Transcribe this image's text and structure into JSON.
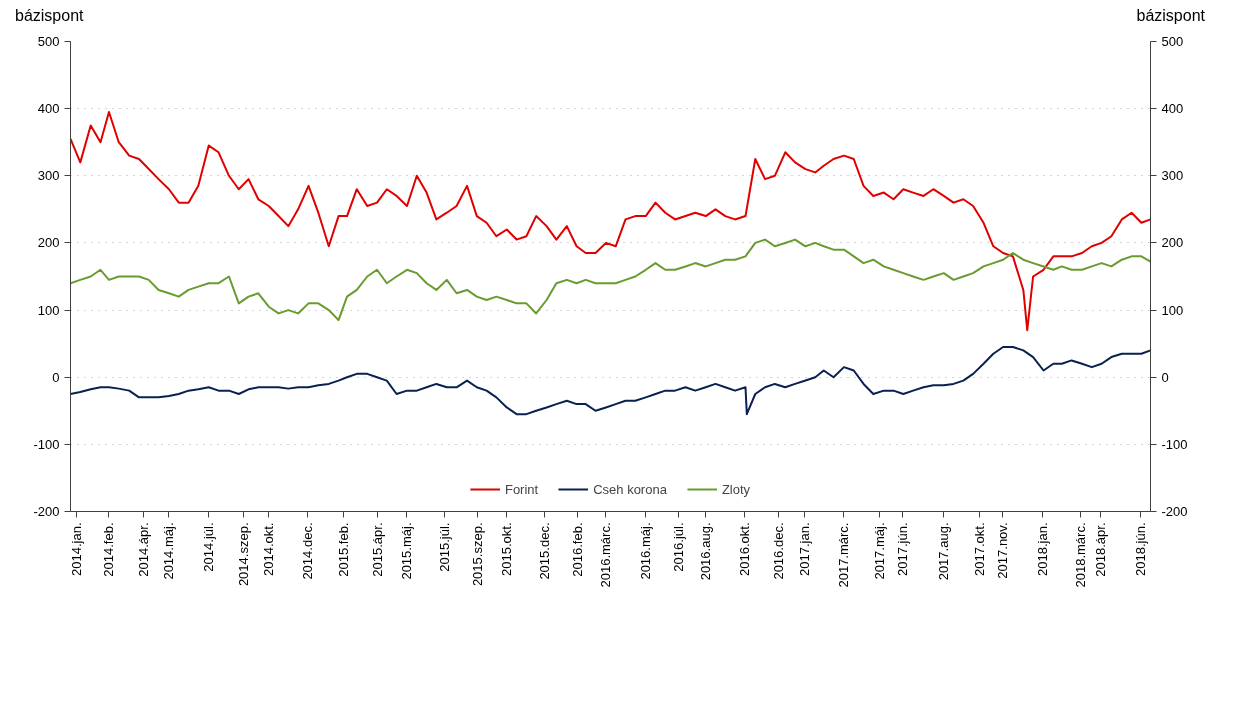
{
  "chart_data": {
    "type": "line",
    "ylabel": "bázispont",
    "y2label": "bázispont",
    "x": [
      "2014-01-01",
      "2014-01-16",
      "2014-02-01",
      "2014-02-16",
      "2014-03-01",
      "2014-03-16",
      "2014-04-01",
      "2014-04-16",
      "2014-05-01",
      "2014-05-16",
      "2014-06-01",
      "2014-06-16",
      "2014-07-01",
      "2014-07-16",
      "2014-08-01",
      "2014-08-16",
      "2014-09-01",
      "2014-09-16",
      "2014-10-01",
      "2014-10-16",
      "2014-11-01",
      "2014-11-16",
      "2014-12-01",
      "2014-12-16",
      "2015-01-01",
      "2015-01-16",
      "2015-02-01",
      "2015-02-16",
      "2015-03-01",
      "2015-03-16",
      "2015-04-01",
      "2015-04-16",
      "2015-05-01",
      "2015-05-16",
      "2015-06-01",
      "2015-06-16",
      "2015-07-01",
      "2015-07-16",
      "2015-08-01",
      "2015-08-16",
      "2015-09-01",
      "2015-09-16",
      "2015-10-01",
      "2015-10-16",
      "2015-11-01",
      "2015-11-16",
      "2015-12-01",
      "2015-12-16",
      "2016-01-01",
      "2016-01-16",
      "2016-02-01",
      "2016-02-16",
      "2016-03-01",
      "2016-03-16",
      "2016-04-01",
      "2016-04-16",
      "2016-05-01",
      "2016-05-16",
      "2016-06-01",
      "2016-06-16",
      "2016-07-01",
      "2016-07-16",
      "2016-08-01",
      "2016-08-16",
      "2016-09-01",
      "2016-09-16",
      "2016-10-01",
      "2016-10-16",
      "2016-11-01",
      "2016-11-16",
      "2016-12-01",
      "2016-12-16",
      "2017-01-01",
      "2017-01-16",
      "2017-02-01",
      "2017-02-16",
      "2017-03-01",
      "2017-03-16",
      "2017-04-01",
      "2017-04-16",
      "2017-05-01",
      "2017-05-16",
      "2017-06-01",
      "2017-06-16",
      "2017-07-01",
      "2017-07-16",
      "2017-08-01",
      "2017-08-16",
      "2017-09-01",
      "2017-09-16",
      "2017-10-01",
      "2017-10-16",
      "2017-11-01",
      "2017-11-16",
      "2017-12-01",
      "2017-12-16",
      "2018-01-01",
      "2018-01-16",
      "2018-02-01",
      "2018-02-16",
      "2018-03-01",
      "2018-03-16",
      "2018-04-01",
      "2018-04-16",
      "2018-05-01",
      "2018-05-16",
      "2018-06-01",
      "2018-06-16",
      "2018-07-01",
      "2018-07-15"
    ],
    "series": [
      {
        "name": "Forint",
        "color": "#e00000",
        "x": [
          "2014-01-01",
          "2014-01-16",
          "2014-02-01",
          "2014-02-16",
          "2014-03-01",
          "2014-03-16",
          "2014-04-01",
          "2014-04-16",
          "2014-05-01",
          "2014-05-16",
          "2014-06-01",
          "2014-06-16",
          "2014-07-01",
          "2014-07-16",
          "2014-08-01",
          "2014-08-16",
          "2014-09-01",
          "2014-09-16",
          "2014-10-01",
          "2014-10-16",
          "2014-11-01",
          "2014-11-16",
          "2014-12-01",
          "2014-12-16",
          "2015-01-01",
          "2015-01-16",
          "2015-02-01",
          "2015-02-16",
          "2015-03-01",
          "2015-03-16",
          "2015-04-01",
          "2015-04-16",
          "2015-05-01",
          "2015-05-16",
          "2015-06-01",
          "2015-06-16",
          "2015-07-01",
          "2015-07-16",
          "2015-08-01",
          "2015-08-16",
          "2015-09-01",
          "2015-09-16",
          "2015-10-01",
          "2015-10-16",
          "2015-11-01",
          "2015-11-16",
          "2015-12-01",
          "2015-12-16",
          "2016-01-01",
          "2016-01-16",
          "2016-02-01",
          "2016-02-16",
          "2016-03-01",
          "2016-03-16",
          "2016-04-01",
          "2016-04-16",
          "2016-05-01",
          "2016-05-16",
          "2016-06-01",
          "2016-06-16",
          "2016-07-01",
          "2016-07-16",
          "2016-08-01",
          "2016-08-16",
          "2016-09-01",
          "2016-09-16",
          "2016-10-01",
          "2016-10-16",
          "2016-11-01",
          "2016-11-16",
          "2016-12-01",
          "2016-12-16",
          "2017-01-01",
          "2017-01-16",
          "2017-02-01",
          "2017-02-16",
          "2017-03-01",
          "2017-03-16",
          "2017-04-01",
          "2017-04-16",
          "2017-05-01",
          "2017-05-16",
          "2017-06-01",
          "2017-06-16",
          "2017-07-01",
          "2017-07-16",
          "2017-08-01",
          "2017-08-16",
          "2017-09-01",
          "2017-09-16",
          "2017-10-01",
          "2017-10-16",
          "2017-11-01",
          "2017-11-16",
          "2017-12-01",
          "2017-12-16",
          "2018-01-01",
          "2018-01-07",
          "2018-01-16",
          "2018-02-01",
          "2018-02-16",
          "2018-03-01",
          "2018-03-16",
          "2018-04-01",
          "2018-04-16",
          "2018-05-01",
          "2018-05-16",
          "2018-06-01",
          "2018-06-16",
          "2018-07-01",
          "2018-07-15"
        ],
        "values": [
          355,
          320,
          375,
          350,
          395,
          350,
          330,
          325,
          310,
          295,
          280,
          260,
          260,
          285,
          345,
          335,
          300,
          280,
          295,
          265,
          255,
          240,
          225,
          250,
          285,
          245,
          195,
          240,
          240,
          280,
          255,
          260,
          280,
          270,
          255,
          300,
          275,
          235,
          245,
          255,
          285,
          240,
          230,
          210,
          220,
          205,
          210,
          240,
          225,
          205,
          225,
          195,
          185,
          185,
          200,
          195,
          235,
          240,
          240,
          260,
          245,
          235,
          240,
          245,
          240,
          250,
          240,
          235,
          240,
          325,
          295,
          300,
          335,
          320,
          310,
          305,
          315,
          325,
          330,
          325,
          285,
          270,
          275,
          265,
          280,
          275,
          270,
          280,
          270,
          260,
          265,
          255,
          230,
          195,
          185,
          180,
          130,
          70,
          150,
          160,
          180,
          180,
          180,
          185,
          195,
          200,
          210,
          235,
          245,
          230,
          235
        ]
      },
      {
        "name": "Cseh korona",
        "color": "#0a2050",
        "x": [
          "2014-01-01",
          "2014-01-16",
          "2014-02-01",
          "2014-02-16",
          "2014-03-01",
          "2014-03-16",
          "2014-04-01",
          "2014-04-16",
          "2014-05-01",
          "2014-05-16",
          "2014-06-01",
          "2014-06-16",
          "2014-07-01",
          "2014-07-16",
          "2014-08-01",
          "2014-08-16",
          "2014-09-01",
          "2014-09-16",
          "2014-10-01",
          "2014-10-16",
          "2014-11-01",
          "2014-11-16",
          "2014-12-01",
          "2014-12-16",
          "2015-01-01",
          "2015-01-16",
          "2015-02-01",
          "2015-02-16",
          "2015-03-01",
          "2015-03-16",
          "2015-04-01",
          "2015-04-16",
          "2015-05-01",
          "2015-05-16",
          "2015-06-01",
          "2015-06-16",
          "2015-07-01",
          "2015-07-16",
          "2015-08-01",
          "2015-08-16",
          "2015-09-01",
          "2015-09-16",
          "2015-10-01",
          "2015-10-16",
          "2015-11-01",
          "2015-11-16",
          "2015-12-01",
          "2015-12-16",
          "2016-01-01",
          "2016-01-16",
          "2016-02-01",
          "2016-02-16",
          "2016-03-01",
          "2016-03-16",
          "2016-04-01",
          "2016-04-16",
          "2016-05-01",
          "2016-05-16",
          "2016-06-01",
          "2016-06-16",
          "2016-07-01",
          "2016-07-16",
          "2016-08-01",
          "2016-08-16",
          "2016-09-01",
          "2016-09-16",
          "2016-10-01",
          "2016-10-16",
          "2016-11-01",
          "2016-11-03",
          "2016-11-16",
          "2016-12-01",
          "2016-12-16",
          "2017-01-01",
          "2017-01-16",
          "2017-02-01",
          "2017-02-16",
          "2017-03-01",
          "2017-03-16",
          "2017-04-01",
          "2017-04-16",
          "2017-05-01",
          "2017-05-16",
          "2017-06-01",
          "2017-06-16",
          "2017-07-01",
          "2017-07-16",
          "2017-08-01",
          "2017-08-16",
          "2017-09-01",
          "2017-09-16",
          "2017-10-01",
          "2017-10-16",
          "2017-11-01",
          "2017-11-16",
          "2017-12-01",
          "2017-12-16",
          "2018-01-01",
          "2018-01-16",
          "2018-02-01",
          "2018-02-16",
          "2018-03-01",
          "2018-03-16",
          "2018-04-01",
          "2018-04-16",
          "2018-05-01",
          "2018-05-16",
          "2018-06-01",
          "2018-06-16",
          "2018-07-01",
          "2018-07-15"
        ],
        "values": [
          -25,
          -22,
          -18,
          -15,
          -15,
          -17,
          -20,
          -30,
          -30,
          -30,
          -28,
          -25,
          -20,
          -18,
          -15,
          -20,
          -20,
          -25,
          -18,
          -15,
          -15,
          -15,
          -17,
          -15,
          -15,
          -12,
          -10,
          -5,
          0,
          5,
          5,
          0,
          -5,
          -25,
          -20,
          -20,
          -15,
          -10,
          -15,
          -15,
          -5,
          -15,
          -20,
          -30,
          -45,
          -55,
          -55,
          -50,
          -45,
          -40,
          -35,
          -40,
          -40,
          -50,
          -45,
          -40,
          -35,
          -35,
          -30,
          -25,
          -20,
          -20,
          -15,
          -20,
          -15,
          -10,
          -15,
          -20,
          -15,
          -55,
          -25,
          -15,
          -10,
          -15,
          -10,
          -5,
          0,
          10,
          0,
          15,
          10,
          -10,
          -25,
          -20,
          -20,
          -25,
          -20,
          -15,
          -12,
          -12,
          -10,
          -5,
          5,
          20,
          35,
          45,
          45,
          40,
          30,
          10,
          20,
          20,
          25,
          20,
          15,
          20,
          30,
          35,
          35,
          35,
          40
        ]
      },
      {
        "name": "Zloty",
        "color": "#6a9a30",
        "values": [
          140,
          145,
          150,
          160,
          145,
          150,
          150,
          150,
          145,
          130,
          125,
          120,
          130,
          135,
          140,
          140,
          150,
          110,
          120,
          125,
          105,
          95,
          100,
          95,
          110,
          110,
          100,
          85,
          120,
          130,
          150,
          160,
          140,
          150,
          160,
          155,
          140,
          130,
          145,
          125,
          130,
          120,
          115,
          120,
          115,
          110,
          110,
          95,
          115,
          140,
          145,
          140,
          145,
          140,
          140,
          140,
          145,
          150,
          160,
          170,
          160,
          160,
          165,
          170,
          165,
          170,
          175,
          175,
          180,
          200,
          205,
          195,
          200,
          205,
          195,
          200,
          195,
          190,
          190,
          180,
          170,
          175,
          165,
          160,
          155,
          150,
          145,
          150,
          155,
          145,
          150,
          155,
          165,
          170,
          175,
          185,
          175,
          170,
          165,
          160,
          165,
          160,
          160,
          165,
          170,
          165,
          175,
          180,
          180,
          172
        ]
      }
    ],
    "xlim": [
      "2014-01-01",
      "2018-07-15"
    ],
    "xticks": [
      {
        "value": "2014-01-10",
        "label": "2014.jan."
      },
      {
        "value": "2014-02-28",
        "label": "2014.feb."
      },
      {
        "value": "2014-04-23",
        "label": "2014.ápr."
      },
      {
        "value": "2014-05-31",
        "label": "2014.máj."
      },
      {
        "value": "2014-07-31",
        "label": "2014.júl."
      },
      {
        "value": "2014-09-23",
        "label": "2014.szep."
      },
      {
        "value": "2014-10-31",
        "label": "2014.okt."
      },
      {
        "value": "2014-12-31",
        "label": "2014.dec."
      },
      {
        "value": "2015-02-24",
        "label": "2015.feb."
      },
      {
        "value": "2015-04-17",
        "label": "2015.ápr."
      },
      {
        "value": "2015-05-31",
        "label": "2015.máj."
      },
      {
        "value": "2015-07-28",
        "label": "2015.júl."
      },
      {
        "value": "2015-09-17",
        "label": "2015.szep."
      },
      {
        "value": "2015-10-31",
        "label": "2015.okt."
      },
      {
        "value": "2015-12-29",
        "label": "2015.dec."
      },
      {
        "value": "2016-02-18",
        "label": "2016.feb."
      },
      {
        "value": "2016-03-31",
        "label": "2016.márc."
      },
      {
        "value": "2016-05-31",
        "label": "2016.máj."
      },
      {
        "value": "2016-07-21",
        "label": "2016.júl."
      },
      {
        "value": "2016-08-31",
        "label": "2016.aug."
      },
      {
        "value": "2016-10-31",
        "label": "2016.okt."
      },
      {
        "value": "2016-12-22",
        "label": "2016.dec."
      },
      {
        "value": "2017-01-31",
        "label": "2017.jan."
      },
      {
        "value": "2017-03-31",
        "label": "2017.márc."
      },
      {
        "value": "2017-05-25",
        "label": "2017.máj."
      },
      {
        "value": "2017-06-30",
        "label": "2017.jún."
      },
      {
        "value": "2017-08-31",
        "label": "2017.aug."
      },
      {
        "value": "2017-10-26",
        "label": "2017.okt."
      },
      {
        "value": "2017-11-30",
        "label": "2017.nov."
      },
      {
        "value": "2018-01-31",
        "label": "2018.jan."
      },
      {
        "value": "2018-03-29",
        "label": "2018.márc."
      },
      {
        "value": "2018-04-30",
        "label": "2018.ápr."
      },
      {
        "value": "2018-06-30",
        "label": "2018.jún."
      }
    ],
    "ylim": [
      -200,
      500
    ],
    "yticks": [
      -200,
      -100,
      0,
      100,
      200,
      300,
      400,
      500
    ],
    "y2lim": [
      -200,
      500
    ],
    "y2ticks": [
      -200,
      -100,
      0,
      100,
      200,
      300,
      400,
      500
    ],
    "grid": "y",
    "legend": "bottom",
    "line_style": "solid",
    "marker": "none"
  }
}
